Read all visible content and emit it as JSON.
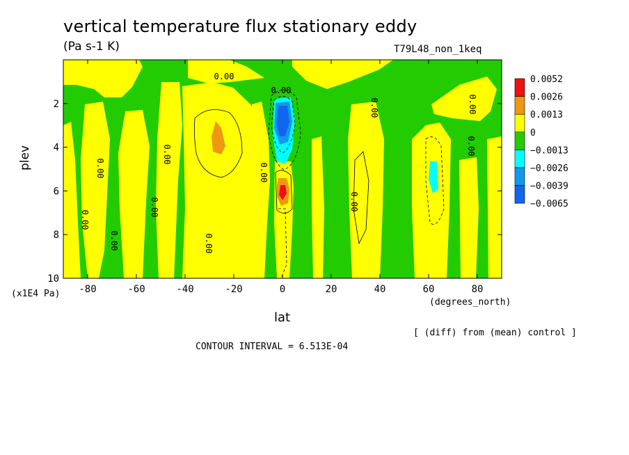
{
  "chart_data": {
    "type": "contour",
    "title": "vertical temperature flux stationary eddy",
    "units": "(Pa s-1 K)",
    "run_id": "T79L48_non_1keq",
    "xlabel": "lat",
    "x_units": "(degrees_north)",
    "ylabel": "plev",
    "y_units": "(x1E4 Pa)",
    "xlim": [
      -90,
      90
    ],
    "ylim": [
      10,
      0
    ],
    "x_ticks": [
      "-80",
      "-60",
      "-40",
      "-20",
      "0",
      "20",
      "40",
      "60",
      "80"
    ],
    "y_ticks": [
      "2",
      "4",
      "6",
      "8",
      "10"
    ],
    "x_tick_values": [
      -80,
      -60,
      -40,
      -20,
      0,
      20,
      40,
      60,
      80
    ],
    "y_tick_values": [
      2,
      4,
      6,
      8,
      10
    ],
    "legend": {
      "labels": [
        "0.0052",
        "0.0026",
        "0.0013",
        "0",
        "−0.0013",
        "−0.0026",
        "−0.0039",
        "−0.0065"
      ],
      "colors": [
        "#ee1111",
        "#ee9911",
        "#ffff00",
        "#22cc00",
        "#00ffff",
        "#1199ee",
        "#1166ee"
      ]
    },
    "contour_labels": [
      "0.00",
      "0.00",
      "0.00",
      "0.00",
      "0.00",
      "0.00",
      "0.00",
      "0.00",
      "0.00",
      "0.00",
      "0.00",
      "0.00",
      "0.00"
    ],
    "note": "[ (diff) from (mean) control ]",
    "contour_interval": "CONTOUR INTERVAL = 6.513E-04",
    "features": [
      {
        "name": "negative core",
        "lat": 0,
        "plev": 2.9,
        "value": -0.0065
      },
      {
        "name": "positive core",
        "lat": 0,
        "plev": 6.0,
        "value": 0.0052
      },
      {
        "name": "positive max SH",
        "lat": -27,
        "plev": 3.6,
        "value": 0.0026
      },
      {
        "name": "negative spot NH",
        "lat": 62,
        "plev": 5.4,
        "value": -0.0026
      }
    ],
    "colors": {
      "positive": "#ffff00",
      "negative": "#22cc00",
      "frame": "#000000"
    }
  }
}
